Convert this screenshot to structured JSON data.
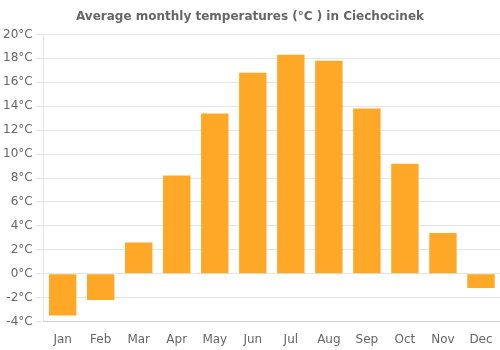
{
  "chart_data": {
    "type": "bar",
    "title": "Average monthly temperatures (°C ) in Ciechocinek",
    "categories": [
      "Jan",
      "Feb",
      "Mar",
      "Apr",
      "May",
      "Jun",
      "Jul",
      "Aug",
      "Sep",
      "Oct",
      "Nov",
      "Dec"
    ],
    "values": [
      -3.5,
      -2.2,
      2.6,
      8.2,
      13.4,
      16.8,
      18.3,
      17.8,
      13.8,
      9.2,
      3.4,
      -1.2
    ],
    "color": "#FFA726",
    "ylim": [
      -4,
      20
    ],
    "yticks": [
      {
        "value": -4,
        "label": "-4°C"
      },
      {
        "value": -2,
        "label": "-2°C"
      },
      {
        "value": 0,
        "label": "0°C"
      },
      {
        "value": 2,
        "label": "2°C"
      },
      {
        "value": 4,
        "label": "4°C"
      },
      {
        "value": 6,
        "label": "6°C"
      },
      {
        "value": 8,
        "label": "8°C"
      },
      {
        "value": 10,
        "label": "10°C"
      },
      {
        "value": 12,
        "label": "12°C"
      },
      {
        "value": 14,
        "label": "14°C"
      },
      {
        "value": 16,
        "label": "16°C"
      },
      {
        "value": 18,
        "label": "18°C"
      },
      {
        "value": 20,
        "label": "20°C"
      }
    ],
    "grid": true
  }
}
